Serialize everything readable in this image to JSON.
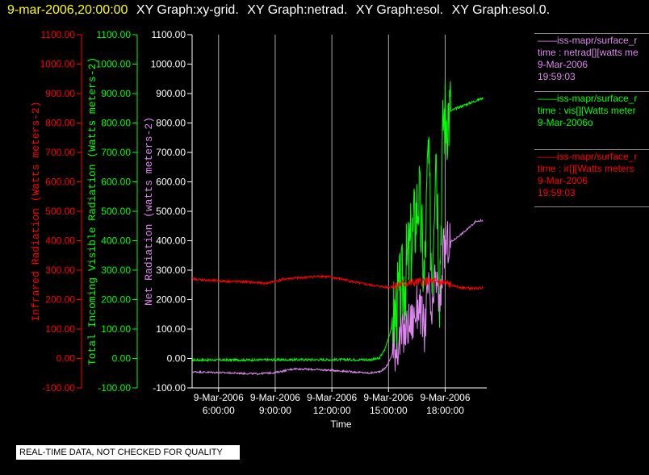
{
  "header": {
    "timestamp": "9-mar-2006,20:00:00",
    "graphs": [
      "XY Graph:xy-grid.",
      "XY Graph:netrad.",
      "XY Graph:esol.",
      "XY Graph:esol.0."
    ]
  },
  "legend": [
    {
      "lines": [
        "——iss-mapr/surface_r",
        "time : netrad[][watts me",
        "9-Mar-2006",
        "19:59:03"
      ],
      "color": "#dd88ee"
    },
    {
      "lines": [
        "——iss-mapr/surface_r",
        "time : vis[][Watts meter",
        "9-Mar-2006o"
      ],
      "color": "#00ff00"
    },
    {
      "lines": [
        "——iss-mapr/surface_r",
        "time : ir[][Watts meters",
        "9-Mar-2006",
        "19:59:03"
      ],
      "color": "#ff0000"
    }
  ],
  "footer": {
    "quality_note": "REAL-TIME DATA, NOT CHECKED FOR QUALITY"
  },
  "chart_data": {
    "type": "line",
    "xlabel": "Time",
    "x_ticks": [
      {
        "hours": 6,
        "line1": "9-Mar-2006",
        "line2": "6:00:00"
      },
      {
        "hours": 9,
        "line1": "9-Mar-2006",
        "line2": "9:00:00"
      },
      {
        "hours": 12,
        "line1": "9-Mar-2006",
        "line2": "12:00:00"
      },
      {
        "hours": 15,
        "line1": "9-Mar-2006",
        "line2": "15:00:00"
      },
      {
        "hours": 18,
        "line1": "9-Mar-2006",
        "line2": "18:00:00"
      }
    ],
    "xlim_hours": [
      4.6,
      20.2
    ],
    "y_axes": [
      {
        "label": "Infrared Radiation (Watts meters-2)",
        "color": "#ff0000",
        "ylim": [
          -100,
          1100
        ]
      },
      {
        "label": "Total Incoming Visible Radiation (Watts meters-2)",
        "color": "#00ff00",
        "ylim": [
          -100,
          1100
        ]
      },
      {
        "label": "Net Radiation (watts meters-2)",
        "color": "#dd88ee",
        "ylim": [
          -100,
          1100
        ]
      }
    ],
    "y_ticks": [
      "-100.00",
      "0.00",
      "100.00",
      "200.00",
      "300.00",
      "400.00",
      "500.00",
      "600.00",
      "700.00",
      "800.00",
      "900.00",
      "1000.00",
      "1100.00"
    ],
    "series": [
      {
        "name": "vis",
        "color": "#00ff00",
        "x": [
          4.6,
          6,
          8,
          10,
          12,
          13,
          14,
          14.5,
          14.8,
          15,
          15.3,
          15.7,
          16,
          16.3,
          16.6,
          16.9,
          17.1,
          17.3,
          17.5,
          17.7,
          17.9,
          18.1,
          18.3,
          18.6,
          19,
          19.4,
          19.8,
          20
        ],
        "y": [
          -5,
          -5,
          -5,
          -4,
          -4,
          -4,
          -4,
          0,
          30,
          70,
          140,
          230,
          320,
          420,
          560,
          260,
          700,
          280,
          780,
          250,
          820,
          830,
          840,
          850,
          860,
          870,
          880,
          885
        ]
      },
      {
        "name": "netrad",
        "color": "#dd88ee",
        "x": [
          4.6,
          6,
          8,
          9,
          10,
          12,
          13,
          14,
          14.5,
          14.8,
          15,
          15.3,
          15.7,
          16,
          16.3,
          16.6,
          16.9,
          17.1,
          17.3,
          17.5,
          17.7,
          17.9,
          18.1,
          18.4,
          18.8,
          19.2,
          19.6,
          20
        ],
        "y": [
          -45,
          -48,
          -52,
          -48,
          -35,
          -40,
          -45,
          -50,
          -45,
          -35,
          -15,
          30,
          70,
          110,
          130,
          190,
          90,
          240,
          120,
          290,
          160,
          360,
          390,
          400,
          420,
          440,
          465,
          470
        ]
      },
      {
        "name": "ir",
        "color": "#ff0000",
        "x": [
          4.6,
          5.5,
          6.5,
          7.5,
          8.5,
          9.5,
          10.5,
          11.5,
          12.5,
          13.5,
          14.5,
          15,
          15.5,
          16,
          16.5,
          17,
          17.5,
          18,
          18.5,
          19,
          19.5,
          20
        ],
        "y": [
          270,
          265,
          262,
          260,
          255,
          270,
          275,
          280,
          270,
          255,
          245,
          242,
          250,
          255,
          258,
          262,
          260,
          255,
          245,
          240,
          238,
          240
        ]
      }
    ]
  }
}
